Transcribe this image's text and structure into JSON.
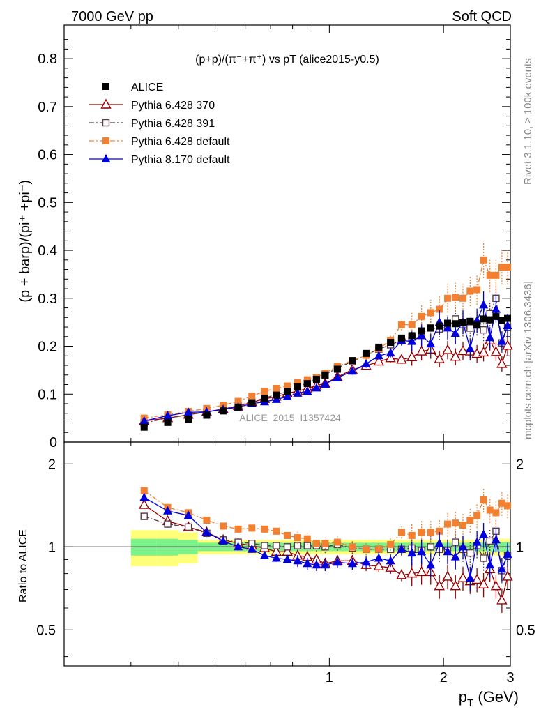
{
  "header": {
    "left": "7000 GeV pp",
    "right": "Soft QCD"
  },
  "side_labels": {
    "rivet": "Rivet 3.1.10, ≥ 100k events",
    "mcplots": "mcplots.cern.ch [arXiv:1306.3436]"
  },
  "watermark": "ALICE_2015_I1357424",
  "chart_data": [
    {
      "type": "scatter",
      "title": "(p̅+p)/(π⁻+π⁺) vs pT (alice2015-y0.5)",
      "ylabel": "(p + barp)/(pi⁺ +pi⁻)",
      "xlabel": "p_T (GeV)",
      "xscale": "log",
      "xlim": [
        0.2,
        3.0
      ],
      "ylim": [
        0,
        0.87
      ],
      "x_ticks": [
        1,
        2,
        3
      ],
      "y_ticks": [
        0,
        0.1,
        0.2,
        0.3,
        0.4,
        0.5,
        0.6,
        0.7,
        0.8
      ],
      "x": [
        0.325,
        0.375,
        0.425,
        0.475,
        0.525,
        0.575,
        0.625,
        0.675,
        0.725,
        0.775,
        0.825,
        0.875,
        0.925,
        0.975,
        1.05,
        1.15,
        1.25,
        1.35,
        1.45,
        1.55,
        1.65,
        1.75,
        1.85,
        1.95,
        2.05,
        2.15,
        2.25,
        2.35,
        2.45,
        2.55,
        2.65,
        2.75,
        2.85,
        2.95
      ],
      "series": [
        {
          "name": "ALICE",
          "color": "#000000",
          "marker": "filled-square",
          "values": [
            0.031,
            0.041,
            0.048,
            0.056,
            0.065,
            0.073,
            0.082,
            0.091,
            0.098,
            0.106,
            0.115,
            0.122,
            0.131,
            0.14,
            0.152,
            0.17,
            0.185,
            0.198,
            0.208,
            0.217,
            0.222,
            0.232,
            0.238,
            0.242,
            0.248,
            0.247,
            0.249,
            0.252,
            0.244,
            0.257,
            0.255,
            0.262,
            0.254,
            0.258
          ]
        },
        {
          "name": "Pythia 6.428 370",
          "color": "#990000",
          "marker": "open-triangle",
          "values": [
            0.044,
            0.05,
            0.057,
            0.063,
            0.069,
            0.075,
            0.083,
            0.09,
            0.095,
            0.102,
            0.106,
            0.112,
            0.118,
            0.122,
            0.136,
            0.151,
            0.159,
            0.168,
            0.175,
            0.172,
            0.177,
            0.189,
            0.193,
            0.173,
            0.192,
            0.178,
            0.19,
            0.189,
            0.184,
            0.187,
            0.212,
            0.188,
            0.163,
            0.201
          ]
        },
        {
          "name": "Pythia 6.428 391",
          "color": "#5a3a4a",
          "marker": "open-square",
          "dash": "dash-dot",
          "values": [
            0.04,
            0.05,
            0.057,
            0.063,
            0.069,
            0.076,
            0.084,
            0.092,
            0.099,
            0.106,
            0.116,
            0.123,
            0.133,
            0.14,
            0.155,
            0.168,
            0.182,
            0.194,
            0.203,
            0.212,
            0.219,
            0.226,
            0.238,
            0.236,
            0.24,
            0.257,
            0.245,
            0.238,
            0.247,
            0.234,
            0.268,
            0.3,
            0.207,
            0.24
          ]
        },
        {
          "name": "Pythia 6.428 default",
          "color": "#f28030",
          "marker": "filled-square",
          "dash": "dash-dot",
          "values": [
            0.05,
            0.057,
            0.064,
            0.07,
            0.077,
            0.085,
            0.096,
            0.106,
            0.112,
            0.117,
            0.124,
            0.13,
            0.135,
            0.144,
            0.158,
            0.17,
            0.181,
            0.195,
            0.212,
            0.245,
            0.245,
            0.262,
            0.27,
            0.277,
            0.3,
            0.302,
            0.3,
            0.315,
            0.318,
            0.38,
            0.348,
            0.348,
            0.365,
            0.365
          ]
        },
        {
          "name": "Pythia 8.170 default",
          "color": "#0000dd",
          "marker": "filled-triangle",
          "values": [
            0.044,
            0.055,
            0.062,
            0.063,
            0.068,
            0.073,
            0.08,
            0.084,
            0.089,
            0.095,
            0.102,
            0.106,
            0.113,
            0.121,
            0.134,
            0.148,
            0.163,
            0.18,
            0.186,
            0.212,
            0.21,
            0.222,
            0.205,
            0.25,
            0.238,
            0.227,
            0.25,
            0.195,
            0.253,
            0.286,
            0.218,
            0.277,
            0.21,
            0.243
          ]
        }
      ]
    },
    {
      "type": "scatter",
      "ylabel": "Ratio to ALICE",
      "xlabel": "p_T (GeV)",
      "xscale": "log",
      "yscale": "log",
      "xlim": [
        0.2,
        3.0
      ],
      "ylim": [
        0.37,
        2.4
      ],
      "y_ticks": [
        0.5,
        1,
        2
      ],
      "series": [
        {
          "name": "Pythia 6.428 370",
          "values": [
            1.42,
            1.24,
            1.18,
            1.13,
            1.06,
            1.03,
            1.01,
            0.99,
            0.96,
            0.96,
            0.93,
            0.92,
            0.9,
            0.87,
            0.89,
            0.89,
            0.86,
            0.85,
            0.84,
            0.79,
            0.8,
            0.81,
            0.81,
            0.72,
            0.78,
            0.72,
            0.77,
            0.75,
            0.76,
            0.73,
            0.83,
            0.72,
            0.64,
            0.78
          ]
        },
        {
          "name": "Pythia 6.428 391",
          "values": [
            1.29,
            1.21,
            1.18,
            1.12,
            1.06,
            1.04,
            1.03,
            1.01,
            1.01,
            1.0,
            1.01,
            1.01,
            1.01,
            1.0,
            1.02,
            0.99,
            0.98,
            0.98,
            0.98,
            0.98,
            0.99,
            0.97,
            1.0,
            0.98,
            0.97,
            1.04,
            0.98,
            0.95,
            1.01,
            0.91,
            1.05,
            1.14,
            0.82,
            0.93
          ]
        },
        {
          "name": "Pythia 6.428 default",
          "values": [
            1.6,
            1.39,
            1.33,
            1.25,
            1.19,
            1.16,
            1.17,
            1.16,
            1.14,
            1.1,
            1.08,
            1.07,
            1.03,
            1.03,
            1.04,
            1.0,
            0.98,
            0.98,
            1.02,
            1.13,
            1.1,
            1.13,
            1.13,
            1.14,
            1.21,
            1.22,
            1.2,
            1.25,
            1.3,
            1.48,
            1.36,
            1.33,
            1.44,
            1.41
          ]
        },
        {
          "name": "Pythia 8.170 default",
          "values": [
            1.51,
            1.35,
            1.3,
            1.13,
            1.05,
            1.0,
            0.98,
            0.93,
            0.91,
            0.9,
            0.89,
            0.87,
            0.86,
            0.86,
            0.88,
            0.87,
            0.88,
            0.91,
            0.89,
            0.98,
            0.95,
            0.96,
            0.86,
            1.03,
            0.96,
            0.92,
            1.0,
            0.77,
            1.04,
            1.11,
            0.86,
            1.06,
            0.83,
            0.94
          ]
        }
      ],
      "bands": {
        "inner_color": "#7cf28a",
        "outer_color": "#ffff7a"
      }
    }
  ]
}
